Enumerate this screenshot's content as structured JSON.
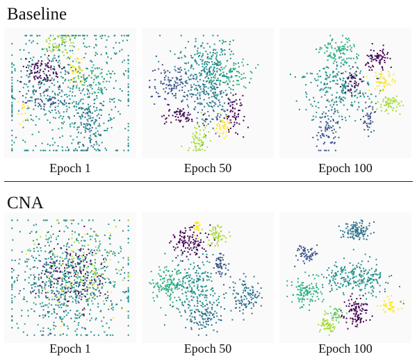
{
  "rows": [
    {
      "title": "Baseline",
      "panels": [
        {
          "caption": "Epoch 1"
        },
        {
          "caption": "Epoch 50"
        },
        {
          "caption": "Epoch 100"
        }
      ]
    },
    {
      "title": "CNA",
      "panels": [
        {
          "caption": "Epoch 1"
        },
        {
          "caption": "Epoch 50"
        },
        {
          "caption": "Epoch 100"
        }
      ]
    }
  ],
  "chart_data": {
    "type": "scatter",
    "colormap": "viridis",
    "class_colors": [
      "#440154",
      "#3b528b",
      "#2c728e",
      "#21918c",
      "#28ae80",
      "#5ec962",
      "#a5db36",
      "#fde725"
    ],
    "panels": [
      {
        "row": "Baseline",
        "caption": "Epoch 1",
        "clusters": [
          {
            "cls": 3,
            "cx": 0.5,
            "cy": 0.5,
            "sx": 0.3,
            "sy": 0.32,
            "n": 600
          },
          {
            "cls": 0,
            "cx": 0.28,
            "cy": 0.32,
            "sx": 0.1,
            "sy": 0.06,
            "n": 90
          },
          {
            "cls": 6,
            "cx": 0.42,
            "cy": 0.1,
            "sx": 0.06,
            "sy": 0.05,
            "n": 60
          },
          {
            "cls": 7,
            "cx": 0.55,
            "cy": 0.28,
            "sx": 0.03,
            "sy": 0.08,
            "n": 40
          },
          {
            "cls": 1,
            "cx": 0.3,
            "cy": 0.55,
            "sx": 0.1,
            "sy": 0.05,
            "n": 70
          },
          {
            "cls": 2,
            "cx": 0.65,
            "cy": 0.72,
            "sx": 0.06,
            "sy": 0.15,
            "n": 110
          },
          {
            "cls": 4,
            "cx": 0.7,
            "cy": 0.4,
            "sx": 0.07,
            "sy": 0.07,
            "n": 50
          },
          {
            "cls": 7,
            "cx": 0.12,
            "cy": 0.65,
            "sx": 0.02,
            "sy": 0.04,
            "n": 15
          }
        ]
      },
      {
        "row": "Baseline",
        "caption": "Epoch 50",
        "clusters": [
          {
            "cls": 3,
            "cx": 0.5,
            "cy": 0.3,
            "sx": 0.12,
            "sy": 0.14,
            "n": 260
          },
          {
            "cls": 2,
            "cx": 0.5,
            "cy": 0.55,
            "sx": 0.1,
            "sy": 0.12,
            "n": 160
          },
          {
            "cls": 4,
            "cx": 0.65,
            "cy": 0.35,
            "sx": 0.1,
            "sy": 0.06,
            "n": 80
          },
          {
            "cls": 1,
            "cx": 0.2,
            "cy": 0.42,
            "sx": 0.1,
            "sy": 0.07,
            "n": 110
          },
          {
            "cls": 0,
            "cx": 0.28,
            "cy": 0.68,
            "sx": 0.07,
            "sy": 0.04,
            "n": 60
          },
          {
            "cls": 0,
            "cx": 0.7,
            "cy": 0.68,
            "sx": 0.05,
            "sy": 0.08,
            "n": 60
          },
          {
            "cls": 7,
            "cx": 0.62,
            "cy": 0.78,
            "sx": 0.03,
            "sy": 0.05,
            "n": 40
          },
          {
            "cls": 6,
            "cx": 0.42,
            "cy": 0.88,
            "sx": 0.04,
            "sy": 0.06,
            "n": 60
          }
        ]
      },
      {
        "row": "Baseline",
        "caption": "Epoch 100",
        "clusters": [
          {
            "cls": 3,
            "cx": 0.45,
            "cy": 0.45,
            "sx": 0.15,
            "sy": 0.14,
            "n": 260
          },
          {
            "cls": 4,
            "cx": 0.45,
            "cy": 0.15,
            "sx": 0.07,
            "sy": 0.06,
            "n": 90
          },
          {
            "cls": 0,
            "cx": 0.76,
            "cy": 0.22,
            "sx": 0.05,
            "sy": 0.05,
            "n": 70
          },
          {
            "cls": 7,
            "cx": 0.8,
            "cy": 0.4,
            "sx": 0.05,
            "sy": 0.04,
            "n": 50
          },
          {
            "cls": 6,
            "cx": 0.85,
            "cy": 0.58,
            "sx": 0.05,
            "sy": 0.04,
            "n": 60
          },
          {
            "cls": 1,
            "cx": 0.35,
            "cy": 0.8,
            "sx": 0.05,
            "sy": 0.1,
            "n": 80
          },
          {
            "cls": 1,
            "cx": 0.68,
            "cy": 0.72,
            "sx": 0.03,
            "sy": 0.06,
            "n": 40
          },
          {
            "cls": 0,
            "cx": 0.55,
            "cy": 0.4,
            "sx": 0.04,
            "sy": 0.05,
            "n": 40
          }
        ]
      },
      {
        "row": "CNA",
        "caption": "Epoch 1",
        "clusters": [
          {
            "cls": 3,
            "cx": 0.5,
            "cy": 0.5,
            "sx": 0.26,
            "sy": 0.26,
            "n": 600
          },
          {
            "cls": 0,
            "cx": 0.48,
            "cy": 0.48,
            "sx": 0.15,
            "sy": 0.15,
            "n": 130
          },
          {
            "cls": 1,
            "cx": 0.45,
            "cy": 0.52,
            "sx": 0.18,
            "sy": 0.14,
            "n": 110
          },
          {
            "cls": 6,
            "cx": 0.55,
            "cy": 0.4,
            "sx": 0.2,
            "sy": 0.2,
            "n": 70
          },
          {
            "cls": 7,
            "cx": 0.55,
            "cy": 0.55,
            "sx": 0.18,
            "sy": 0.18,
            "n": 50
          },
          {
            "cls": 4,
            "cx": 0.5,
            "cy": 0.5,
            "sx": 0.22,
            "sy": 0.22,
            "n": 90
          }
        ]
      },
      {
        "row": "CNA",
        "caption": "Epoch 50",
        "clusters": [
          {
            "cls": 0,
            "cx": 0.35,
            "cy": 0.22,
            "sx": 0.07,
            "sy": 0.07,
            "n": 120
          },
          {
            "cls": 7,
            "cx": 0.42,
            "cy": 0.08,
            "sx": 0.02,
            "sy": 0.03,
            "n": 25
          },
          {
            "cls": 6,
            "cx": 0.57,
            "cy": 0.15,
            "sx": 0.04,
            "sy": 0.05,
            "n": 60
          },
          {
            "cls": 1,
            "cx": 0.6,
            "cy": 0.4,
            "sx": 0.03,
            "sy": 0.05,
            "n": 50
          },
          {
            "cls": 4,
            "cx": 0.18,
            "cy": 0.55,
            "sx": 0.07,
            "sy": 0.08,
            "n": 130
          },
          {
            "cls": 3,
            "cx": 0.4,
            "cy": 0.58,
            "sx": 0.1,
            "sy": 0.12,
            "n": 200
          },
          {
            "cls": 2,
            "cx": 0.45,
            "cy": 0.82,
            "sx": 0.07,
            "sy": 0.07,
            "n": 100
          },
          {
            "cls": 2,
            "cx": 0.8,
            "cy": 0.65,
            "sx": 0.06,
            "sy": 0.08,
            "n": 110
          }
        ]
      },
      {
        "row": "CNA",
        "caption": "Epoch 100",
        "clusters": [
          {
            "cls": 2,
            "cx": 0.58,
            "cy": 0.12,
            "sx": 0.06,
            "sy": 0.04,
            "n": 120
          },
          {
            "cls": 1,
            "cx": 0.18,
            "cy": 0.3,
            "sx": 0.04,
            "sy": 0.03,
            "n": 60
          },
          {
            "cls": 3,
            "cx": 0.58,
            "cy": 0.52,
            "sx": 0.14,
            "sy": 0.07,
            "n": 230
          },
          {
            "cls": 4,
            "cx": 0.18,
            "cy": 0.62,
            "sx": 0.06,
            "sy": 0.06,
            "n": 110
          },
          {
            "cls": 0,
            "cx": 0.58,
            "cy": 0.78,
            "sx": 0.05,
            "sy": 0.07,
            "n": 100
          },
          {
            "cls": 7,
            "cx": 0.85,
            "cy": 0.73,
            "sx": 0.04,
            "sy": 0.03,
            "n": 40
          },
          {
            "cls": 6,
            "cx": 0.35,
            "cy": 0.88,
            "sx": 0.04,
            "sy": 0.05,
            "n": 60
          },
          {
            "cls": 5,
            "cx": 0.42,
            "cy": 0.8,
            "sx": 0.03,
            "sy": 0.03,
            "n": 30
          }
        ]
      }
    ]
  }
}
